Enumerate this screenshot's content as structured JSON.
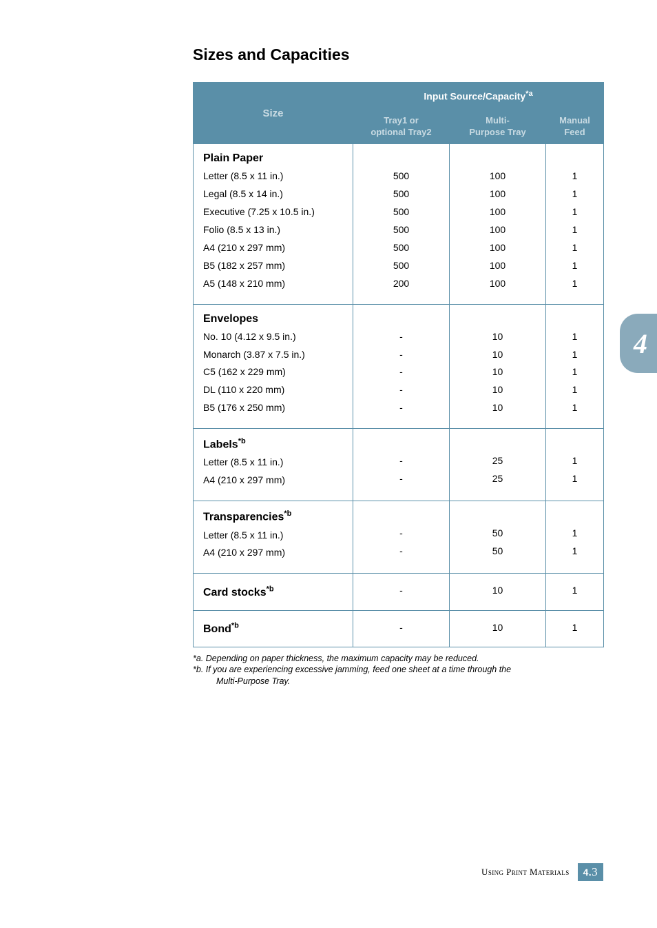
{
  "heading": "Sizes and Capacities",
  "table": {
    "sizeHeader": "Size",
    "topHeader": "Input Source/Capacity",
    "topHeaderSup": "*a",
    "sub1a": "Tray1 or",
    "sub1b": "optional Tray2",
    "sub2a": "Multi-",
    "sub2b": "Purpose Tray",
    "sub3a": "Manual",
    "sub3b": "Feed",
    "groups": [
      {
        "title": "Plain Paper",
        "sup": "",
        "items": [
          "Letter (8.5 x 11 in.)",
          "Legal (8.5 x 14 in.)",
          "Executive (7.25 x 10.5 in.)",
          "Folio (8.5 x 13 in.)",
          "A4 (210 x 297 mm)",
          "B5 (182 x 257 mm)",
          "A5 (148 x 210 mm)"
        ],
        "c1": [
          "500",
          "500",
          "500",
          "500",
          "500",
          "500",
          "200"
        ],
        "c2": [
          "100",
          "100",
          "100",
          "100",
          "100",
          "100",
          "100"
        ],
        "c3": [
          "1",
          "1",
          "1",
          "1",
          "1",
          "1",
          "1"
        ]
      },
      {
        "title": "Envelopes",
        "sup": "",
        "items": [
          "No. 10 (4.12 x 9.5 in.)",
          "Monarch (3.87 x 7.5 in.)",
          "C5 (162 x 229 mm)",
          "DL (110 x 220 mm)",
          "B5 (176 x 250 mm)"
        ],
        "c1": [
          "-",
          "-",
          "-",
          "-",
          "-"
        ],
        "c2": [
          "10",
          "10",
          "10",
          "10",
          "10"
        ],
        "c3": [
          "1",
          "1",
          "1",
          "1",
          "1"
        ]
      },
      {
        "title": "Labels",
        "sup": "*b",
        "items": [
          "Letter (8.5 x 11 in.)",
          "A4 (210 x 297 mm)"
        ],
        "c1": [
          "-",
          "-"
        ],
        "c2": [
          "25",
          "25"
        ],
        "c3": [
          "1",
          "1"
        ]
      },
      {
        "title": "Transparencies",
        "sup": "*b",
        "items": [
          "Letter (8.5 x 11 in.)",
          "A4 (210 x 297 mm)"
        ],
        "c1": [
          "-",
          "-"
        ],
        "c2": [
          "50",
          "50"
        ],
        "c3": [
          "1",
          "1"
        ]
      }
    ],
    "singles": [
      {
        "title": "Card stocks",
        "sup": "*b",
        "c1": "-",
        "c2": "10",
        "c3": "1"
      },
      {
        "title": "Bond",
        "sup": "*b",
        "c1": "-",
        "c2": "10",
        "c3": "1"
      }
    ]
  },
  "footnotes": {
    "a": "*a. Depending on paper thickness, the maximum capacity may be reduced.",
    "b1": "*b. If you are experiencing excessive jamming, feed one sheet at a time through the",
    "b2": "Multi-Purpose Tray."
  },
  "sideTab": "4",
  "footer": {
    "label": "Using Print Materials",
    "chapter": "4.",
    "page": "3"
  },
  "colors": {
    "headerBg": "#5a8fa8",
    "headerFg": "#ffffff",
    "subFg": "#c9dbe3",
    "border": "#5a8fa8",
    "tabBg": "#8aaabb"
  },
  "layout": {
    "colWidths": [
      "232px",
      "140px",
      "140px",
      "84px"
    ]
  }
}
